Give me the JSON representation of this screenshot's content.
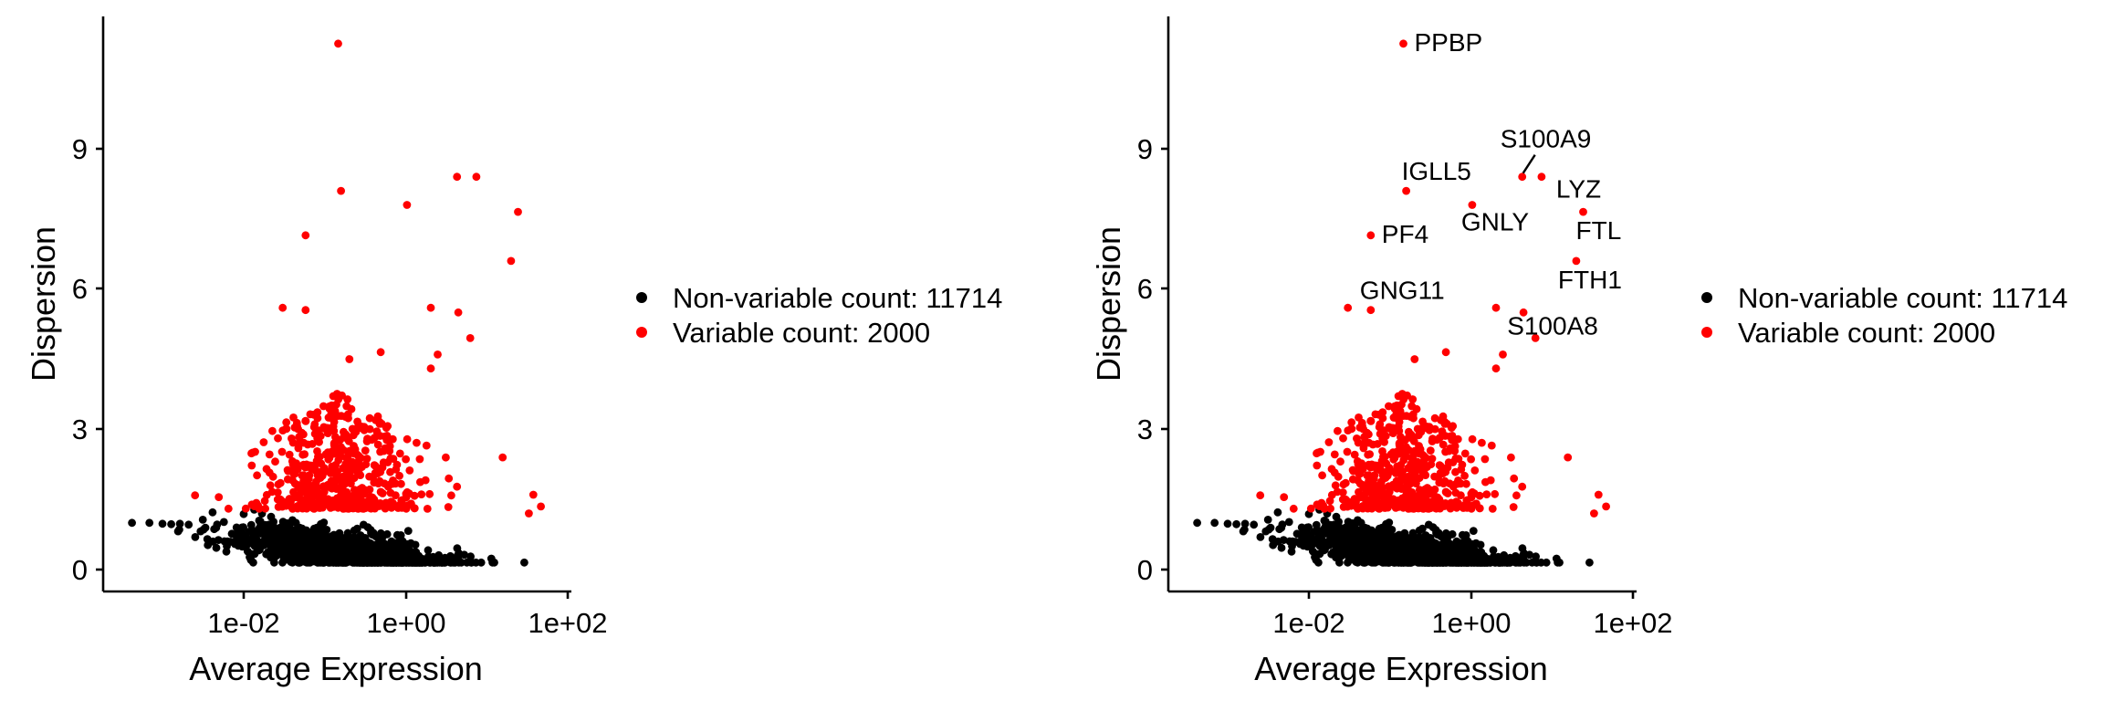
{
  "chart_data": [
    {
      "type": "scatter",
      "title": "",
      "xlabel": "Average Expression",
      "ylabel": "Dispersion",
      "x_scale": "log10",
      "xlim": [
        0.0007,
        120
      ],
      "ylim": [
        -0.6,
        12.4
      ],
      "x_ticks": [
        {
          "value": 0.01,
          "label": "1e-02"
        },
        {
          "value": 1,
          "label": "1e+00"
        },
        {
          "value": 100,
          "label": "1e+02"
        }
      ],
      "y_ticks": [
        {
          "value": 0,
          "label": "0"
        },
        {
          "value": 3,
          "label": "3"
        },
        {
          "value": 6,
          "label": "6"
        },
        {
          "value": 9,
          "label": "9"
        }
      ],
      "grid": false,
      "legend_position": "right",
      "series": [
        {
          "name": "Non-variable count: 11714",
          "color": "#000000"
        },
        {
          "name": "Variable count: 2000",
          "color": "#ff0000"
        }
      ],
      "notable_points": [
        {
          "x": 0.26,
          "y": 11.25
        },
        {
          "x": 0.28,
          "y": 8.1
        },
        {
          "x": 6.0,
          "y": 8.4
        },
        {
          "x": 10.0,
          "y": 8.4
        },
        {
          "x": 1.6,
          "y": 7.8
        },
        {
          "x": 30.0,
          "y": 7.65
        },
        {
          "x": 0.11,
          "y": 7.15
        },
        {
          "x": 25.0,
          "y": 6.6
        },
        {
          "x": 0.06,
          "y": 5.6
        },
        {
          "x": 0.11,
          "y": 5.55
        },
        {
          "x": 3.0,
          "y": 5.6
        },
        {
          "x": 6.2,
          "y": 5.5
        },
        {
          "x": 8.5,
          "y": 4.95
        },
        {
          "x": 3.6,
          "y": 4.6
        },
        {
          "x": 0.35,
          "y": 4.5
        },
        {
          "x": 0.8,
          "y": 4.65
        },
        {
          "x": 3.0,
          "y": 4.3
        },
        {
          "x": 20.0,
          "y": 2.4
        },
        {
          "x": 45.0,
          "y": 1.6
        },
        {
          "x": 55.0,
          "y": 1.35
        },
        {
          "x": 40.0,
          "y": 1.2
        }
      ]
    },
    {
      "type": "scatter",
      "title": "",
      "xlabel": "Average Expression",
      "ylabel": "Dispersion",
      "x_scale": "log10",
      "xlim": [
        0.0007,
        120
      ],
      "ylim": [
        -0.6,
        12.4
      ],
      "x_ticks": [
        {
          "value": 0.01,
          "label": "1e-02"
        },
        {
          "value": 1,
          "label": "1e+00"
        },
        {
          "value": 100,
          "label": "1e+02"
        }
      ],
      "y_ticks": [
        {
          "value": 0,
          "label": "0"
        },
        {
          "value": 3,
          "label": "3"
        },
        {
          "value": 6,
          "label": "6"
        },
        {
          "value": 9,
          "label": "9"
        }
      ],
      "grid": false,
      "legend_position": "right",
      "series": [
        {
          "name": "Non-variable count: 11714",
          "color": "#000000"
        },
        {
          "name": "Variable count: 2000",
          "color": "#ff0000"
        }
      ],
      "labeled_genes": [
        {
          "label": "PPBP",
          "x": 0.26,
          "y": 11.25
        },
        {
          "label": "S100A9",
          "x": 6.0,
          "y": 8.4
        },
        {
          "label": "LYZ",
          "x": 10.0,
          "y": 8.4
        },
        {
          "label": "IGLL5",
          "x": 0.28,
          "y": 8.1
        },
        {
          "label": "GNLY",
          "x": 1.6,
          "y": 7.8
        },
        {
          "label": "FTL",
          "x": 30.0,
          "y": 7.65
        },
        {
          "label": "PF4",
          "x": 0.11,
          "y": 7.15
        },
        {
          "label": "FTH1",
          "x": 25.0,
          "y": 6.6
        },
        {
          "label": "GNG11",
          "x": 0.11,
          "y": 5.55
        },
        {
          "label": "S100A8",
          "x": 8.5,
          "y": 4.95
        }
      ]
    }
  ]
}
